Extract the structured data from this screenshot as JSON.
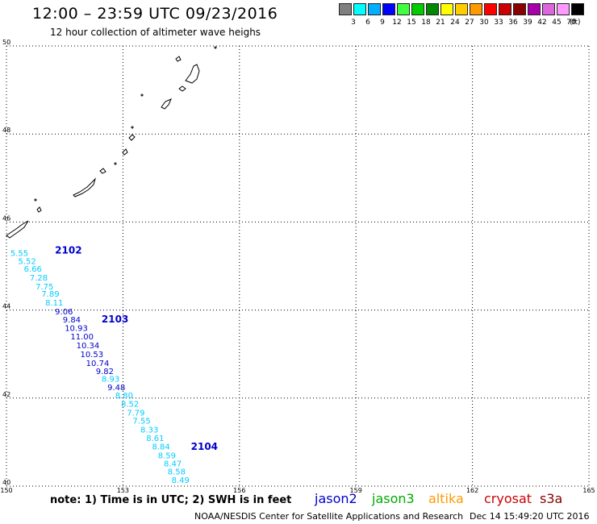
{
  "header": {
    "title": "12:00 – 23:59 UTC 09/23/2016",
    "subtitle": "12 hour collection of altimeter wave heighs"
  },
  "legend": {
    "colors": [
      "#808080",
      "#00ffff",
      "#00b0ff",
      "#0000ff",
      "#40ff40",
      "#00cc00",
      "#008800",
      "#ffff00",
      "#ffcc00",
      "#ff9900",
      "#ff0000",
      "#cc0000",
      "#880000",
      "#aa00aa",
      "#dd66dd",
      "#ff99ff",
      "#000000"
    ],
    "labels": [
      "3",
      "6",
      "9",
      "12",
      "15",
      "18",
      "21",
      "24",
      "27",
      "30",
      "33",
      "36",
      "39",
      "42",
      "45",
      "70"
    ],
    "unit": "(ft)"
  },
  "map": {
    "lon_range": [
      150,
      165
    ],
    "lat_range": [
      40,
      50
    ],
    "lon_ticks": [
      "150",
      "153",
      "156",
      "159",
      "162",
      "165"
    ],
    "lat_ticks": [
      "40",
      "42",
      "44",
      "46",
      "48",
      "50"
    ],
    "gridlines": "dotted",
    "colors": {
      "light_label": "#00ccff",
      "dark_label": "#0000cc"
    },
    "passes": [
      {
        "id": "2102",
        "lon": 151.25,
        "lat": 45.28
      },
      {
        "id": "2103",
        "lon": 152.45,
        "lat": 43.72
      },
      {
        "id": "2104",
        "lon": 154.75,
        "lat": 40.82
      }
    ],
    "points": [
      {
        "v": "5.55",
        "lon": 150.1,
        "lat": 45.23,
        "c": "light"
      },
      {
        "v": "5.52",
        "lon": 150.3,
        "lat": 45.05,
        "c": "light"
      },
      {
        "v": "6.66",
        "lon": 150.45,
        "lat": 44.87,
        "c": "light"
      },
      {
        "v": "7.28",
        "lon": 150.6,
        "lat": 44.67,
        "c": "light"
      },
      {
        "v": "7.75",
        "lon": 150.75,
        "lat": 44.47,
        "c": "light"
      },
      {
        "v": "7.89",
        "lon": 150.9,
        "lat": 44.3,
        "c": "light"
      },
      {
        "v": "8.11",
        "lon": 151.0,
        "lat": 44.1,
        "c": "light"
      },
      {
        "v": "9.06",
        "lon": 151.25,
        "lat": 43.9,
        "c": "dark"
      },
      {
        "v": "9.84",
        "lon": 151.45,
        "lat": 43.72,
        "c": "dark"
      },
      {
        "v": "10.93",
        "lon": 151.5,
        "lat": 43.53,
        "c": "dark"
      },
      {
        "v": "11.00",
        "lon": 151.65,
        "lat": 43.33,
        "c": "dark"
      },
      {
        "v": "10.34",
        "lon": 151.8,
        "lat": 43.13,
        "c": "dark"
      },
      {
        "v": "10.53",
        "lon": 151.9,
        "lat": 42.93,
        "c": "dark"
      },
      {
        "v": "10.74",
        "lon": 152.05,
        "lat": 42.73,
        "c": "dark"
      },
      {
        "v": "9.82",
        "lon": 152.3,
        "lat": 42.55,
        "c": "dark"
      },
      {
        "v": "8.93",
        "lon": 152.45,
        "lat": 42.37,
        "c": "light"
      },
      {
        "v": "9.48",
        "lon": 152.6,
        "lat": 42.18,
        "c": "dark"
      },
      {
        "v": "8.80",
        "lon": 152.8,
        "lat": 42.0,
        "c": "light"
      },
      {
        "v": "8.52",
        "lon": 152.95,
        "lat": 41.8,
        "c": "light"
      },
      {
        "v": "7.79",
        "lon": 153.1,
        "lat": 41.6,
        "c": "light"
      },
      {
        "v": "7.55",
        "lon": 153.25,
        "lat": 41.42,
        "c": "light"
      },
      {
        "v": "8.33",
        "lon": 153.45,
        "lat": 41.22,
        "c": "light"
      },
      {
        "v": "8.61",
        "lon": 153.6,
        "lat": 41.03,
        "c": "light"
      },
      {
        "v": "8.84",
        "lon": 153.75,
        "lat": 40.83,
        "c": "light"
      },
      {
        "v": "8.59",
        "lon": 153.9,
        "lat": 40.63,
        "c": "light"
      },
      {
        "v": "8.47",
        "lon": 154.05,
        "lat": 40.45,
        "c": "light"
      },
      {
        "v": "8.58",
        "lon": 154.15,
        "lat": 40.27,
        "c": "light"
      },
      {
        "v": "8.49",
        "lon": 154.25,
        "lat": 40.07,
        "c": "light"
      }
    ]
  },
  "footer": {
    "note": "note: 1) Time is in UTC; 2) SWH is in feet",
    "satellites": [
      {
        "name": "jason2",
        "color": "#0000cc"
      },
      {
        "name": "jason3",
        "color": "#00aa00"
      },
      {
        "name": "altika",
        "color": "#ff9900"
      },
      {
        "name": "cryosat",
        "color": "#cc0000"
      },
      {
        "name": "s3a",
        "color": "#880000"
      }
    ],
    "credit": "NOAA/NESDIS Center for Satellite Applications and Research",
    "timestamp": "Dec 14 15:49:20 UTC 2016"
  }
}
